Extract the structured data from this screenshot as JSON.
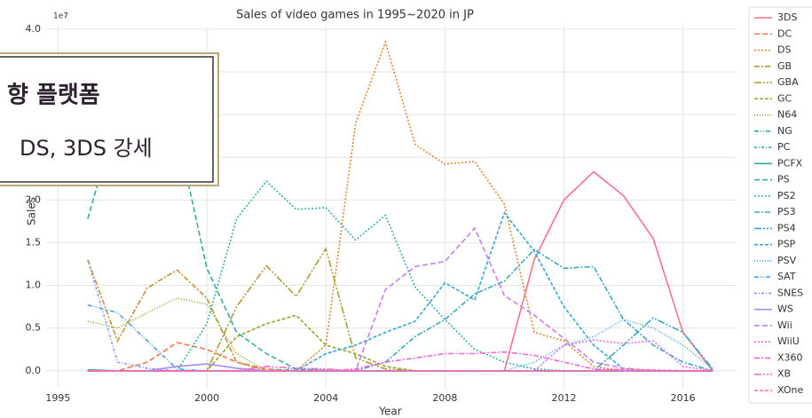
{
  "chart_data": {
    "type": "line",
    "title": "Sales of video games in 1995~2020 in JP",
    "x_label": "Year",
    "y_label": "Sales",
    "offset_label": "1e7",
    "x": [
      1996,
      1997,
      1998,
      1999,
      2000,
      2001,
      2002,
      2003,
      2004,
      2005,
      2006,
      2007,
      2008,
      2009,
      2010,
      2011,
      2012,
      2013,
      2014,
      2015,
      2016,
      2017
    ],
    "xlim": [
      1994.6,
      2017.8
    ],
    "xticks": [
      1995,
      2000,
      2004,
      2008,
      2012,
      2016
    ],
    "ylim": [
      -0.2,
      4.03
    ],
    "yticks": [
      {
        "value": 0,
        "label": "0.0"
      },
      0.5,
      {
        "value": 1,
        "label": "1.0"
      },
      1.5,
      {
        "value": 2,
        "label": "2.0"
      },
      2.5,
      {
        "value": 3,
        "label": "3.0"
      },
      3.5,
      {
        "value": 4,
        "label": "4.0"
      }
    ],
    "grid": true,
    "legend": "right",
    "series": [
      {
        "name": "3DS",
        "color": "#f77189",
        "values": [
          0,
          0,
          0,
          0,
          0,
          0,
          0,
          0,
          0,
          0,
          0,
          0,
          0,
          0,
          0,
          1.3,
          2.0,
          2.33,
          2.05,
          1.55,
          0.45,
          0
        ]
      },
      {
        "name": "DC",
        "color": "#f7754f",
        "values": [
          0,
          0,
          0.1,
          0.33,
          0.25,
          0.1,
          0.02,
          0,
          0,
          0,
          0,
          0,
          0,
          0,
          0,
          0,
          0,
          0,
          0,
          0,
          0,
          0
        ]
      },
      {
        "name": "DS",
        "color": "#dc8932",
        "values": [
          0,
          0,
          0,
          0,
          0,
          0,
          0,
          0,
          0.3,
          2.9,
          3.85,
          2.65,
          2.42,
          2.45,
          1.95,
          0.45,
          0.35,
          0.05,
          0,
          0,
          0,
          0
        ]
      },
      {
        "name": "GB",
        "color": "#c39532",
        "values": [
          1.3,
          0.35,
          0.97,
          1.18,
          0.85,
          0.1,
          0,
          0,
          0,
          0,
          0,
          0,
          0,
          0,
          0,
          0,
          0,
          0,
          0,
          0,
          0,
          0
        ]
      },
      {
        "name": "GBA",
        "color": "#ae9d31",
        "values": [
          0,
          0,
          0,
          0,
          0,
          0.75,
          1.23,
          0.87,
          1.43,
          0.15,
          0.02,
          0,
          0,
          0,
          0,
          0,
          0,
          0,
          0,
          0,
          0,
          0
        ]
      },
      {
        "name": "GC",
        "color": "#97a431",
        "values": [
          0,
          0,
          0,
          0,
          0,
          0.4,
          0.55,
          0.65,
          0.3,
          0.2,
          0.05,
          0,
          0,
          0,
          0,
          0,
          0,
          0,
          0,
          0,
          0,
          0
        ]
      },
      {
        "name": "N64",
        "color": "#77ab31",
        "values": [
          0.58,
          0.5,
          0.68,
          0.85,
          0.78,
          0.2,
          0,
          0,
          0,
          0,
          0,
          0,
          0,
          0,
          0,
          0,
          0,
          0,
          0,
          0,
          0,
          0
        ]
      },
      {
        "name": "NG",
        "color": "#33b07a",
        "values": [
          0.01,
          0,
          0,
          0,
          0,
          0,
          0,
          0,
          0,
          0,
          0,
          0,
          0,
          0,
          0,
          0,
          0,
          0,
          0,
          0,
          0,
          0
        ]
      },
      {
        "name": "PC",
        "color": "#34ae8c",
        "values": [
          0,
          0,
          0,
          0,
          0,
          0,
          0,
          0.02,
          0.01,
          0,
          0,
          0,
          0,
          0,
          0,
          0,
          0,
          0,
          0,
          0,
          0,
          0
        ]
      },
      {
        "name": "PCFX",
        "color": "#35ad9b",
        "values": [
          0.01,
          0,
          0,
          0,
          0,
          0,
          0,
          0,
          0,
          0,
          0,
          0,
          0,
          0,
          0,
          0,
          0,
          0,
          0,
          0,
          0,
          0
        ]
      },
      {
        "name": "PS",
        "color": "#36ada4",
        "values": [
          1.78,
          3.0,
          2.9,
          2.8,
          1.2,
          0.45,
          0.2,
          0.02,
          0,
          0,
          0,
          0,
          0,
          0,
          0,
          0,
          0,
          0,
          0,
          0,
          0,
          0
        ]
      },
      {
        "name": "PS2",
        "color": "#37abb0",
        "values": [
          0,
          0,
          0,
          0,
          0.55,
          1.78,
          2.22,
          1.89,
          1.91,
          1.53,
          1.82,
          0.98,
          0.6,
          0.25,
          0.1,
          0.02,
          0,
          0,
          0,
          0,
          0,
          0
        ]
      },
      {
        "name": "PS3",
        "color": "#38a9bd",
        "values": [
          0,
          0,
          0,
          0,
          0,
          0,
          0,
          0,
          0,
          0,
          0.1,
          0.4,
          0.6,
          0.9,
          1.05,
          1.42,
          1.2,
          1.22,
          0.6,
          0.3,
          0.1,
          0
        ]
      },
      {
        "name": "PS4",
        "color": "#39a7c9",
        "values": [
          0,
          0,
          0,
          0,
          0,
          0,
          0,
          0,
          0,
          0,
          0,
          0,
          0,
          0,
          0,
          0,
          0,
          0,
          0.3,
          0.62,
          0.45,
          0.02
        ]
      },
      {
        "name": "PSP",
        "color": "#3aa5d6",
        "values": [
          0,
          0,
          0,
          0,
          0,
          0,
          0,
          0,
          0.2,
          0.3,
          0.45,
          0.58,
          1.03,
          0.83,
          1.85,
          1.4,
          0.75,
          0.3,
          0.02,
          0,
          0,
          0
        ]
      },
      {
        "name": "PSV",
        "color": "#3ba2e6",
        "values": [
          0,
          0,
          0,
          0,
          0,
          0,
          0,
          0,
          0,
          0,
          0,
          0,
          0,
          0,
          0,
          0.1,
          0.3,
          0.4,
          0.6,
          0.5,
          0.3,
          0.02
        ]
      },
      {
        "name": "SAT",
        "color": "#4a9ff0",
        "values": [
          0.77,
          0.68,
          0.35,
          0.02,
          0,
          0,
          0,
          0,
          0,
          0,
          0,
          0,
          0,
          0,
          0,
          0,
          0,
          0,
          0,
          0,
          0,
          0
        ]
      },
      {
        "name": "SNES",
        "color": "#8c95f4",
        "values": [
          1.3,
          0.1,
          0.03,
          0,
          0,
          0,
          0,
          0,
          0,
          0,
          0,
          0,
          0,
          0,
          0,
          0,
          0,
          0,
          0,
          0,
          0,
          0
        ]
      },
      {
        "name": "WS",
        "color": "#a48cf4",
        "values": [
          0,
          0,
          0,
          0.05,
          0.08,
          0.03,
          0,
          0,
          0,
          0,
          0,
          0,
          0,
          0,
          0,
          0,
          0,
          0,
          0,
          0,
          0,
          0
        ]
      },
      {
        "name": "Wii",
        "color": "#c77ff4",
        "values": [
          0,
          0,
          0,
          0,
          0,
          0,
          0,
          0,
          0,
          0,
          0.95,
          1.22,
          1.28,
          1.67,
          0.88,
          0.65,
          0.38,
          0.1,
          0.03,
          0,
          0,
          0
        ]
      },
      {
        "name": "WiiU",
        "color": "#e46ef4",
        "values": [
          0,
          0,
          0,
          0,
          0,
          0,
          0,
          0,
          0,
          0,
          0,
          0,
          0,
          0,
          0,
          0,
          0.3,
          0.36,
          0.32,
          0.35,
          0.05,
          0
        ]
      },
      {
        "name": "X360",
        "color": "#f462de",
        "values": [
          0,
          0,
          0,
          0,
          0,
          0,
          0,
          0,
          0,
          0.02,
          0.1,
          0.15,
          0.2,
          0.2,
          0.22,
          0.18,
          0.1,
          0.02,
          0,
          0,
          0,
          0
        ]
      },
      {
        "name": "XB",
        "color": "#f56cc1",
        "values": [
          0,
          0,
          0,
          0,
          0,
          0,
          0.05,
          0.03,
          0.02,
          0,
          0,
          0,
          0,
          0,
          0,
          0,
          0,
          0,
          0,
          0,
          0,
          0
        ]
      },
      {
        "name": "XOne",
        "color": "#f6709f",
        "values": [
          0,
          0,
          0,
          0,
          0,
          0,
          0,
          0,
          0,
          0,
          0,
          0,
          0,
          0,
          0,
          0,
          0,
          0,
          0.02,
          0.01,
          0,
          0
        ]
      }
    ]
  },
  "callout": {
    "lines": [
      "향 플랫폼",
      "DS, 3DS 강세"
    ]
  }
}
